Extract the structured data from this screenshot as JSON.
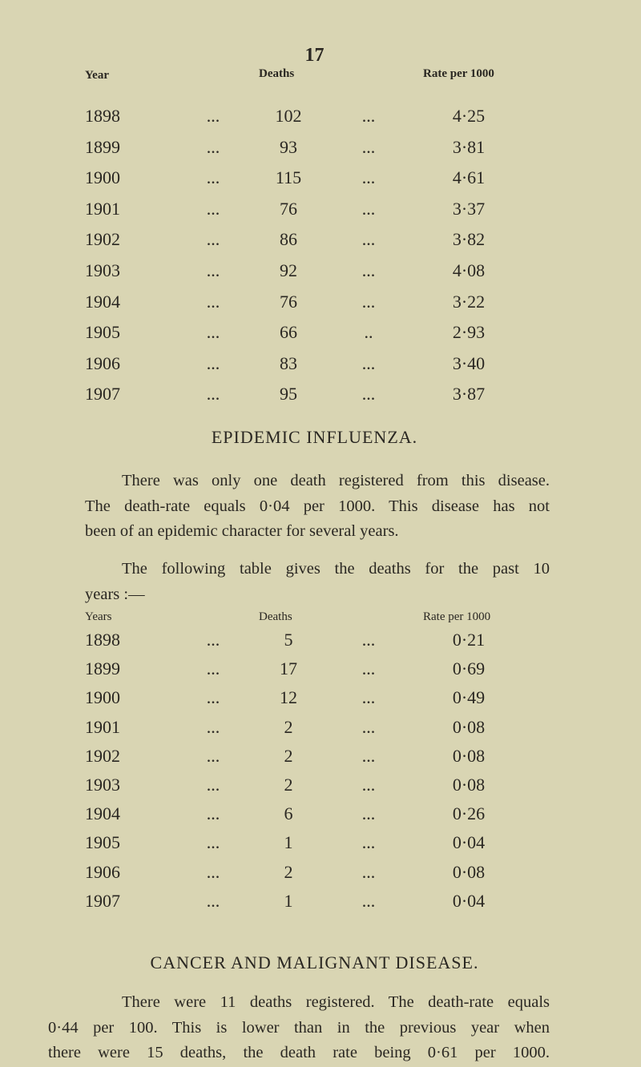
{
  "page_number": "17",
  "table1": {
    "headers": {
      "year": "Year",
      "deaths": "Deaths",
      "rate": "Rate per 1000"
    },
    "rows": [
      {
        "year": "1898",
        "sep1": "...",
        "deaths": "102",
        "sep2": "...",
        "rate": "4·25"
      },
      {
        "year": "1899",
        "sep1": "...",
        "deaths": "93",
        "sep2": "...",
        "rate": "3·81"
      },
      {
        "year": "1900",
        "sep1": "...",
        "deaths": "115",
        "sep2": "...",
        "rate": "4·61"
      },
      {
        "year": "1901",
        "sep1": "...",
        "deaths": "76",
        "sep2": "...",
        "rate": "3·37"
      },
      {
        "year": "1902",
        "sep1": "...",
        "deaths": "86",
        "sep2": "...",
        "rate": "3·82"
      },
      {
        "year": "1903",
        "sep1": "...",
        "deaths": "92",
        "sep2": "...",
        "rate": "4·08"
      },
      {
        "year": "1904",
        "sep1": "...",
        "deaths": "76",
        "sep2": "...",
        "rate": "3·22"
      },
      {
        "year": "1905",
        "sep1": "...",
        "deaths": "66",
        "sep2": "..",
        "rate": "2·93"
      },
      {
        "year": "1906",
        "sep1": "...",
        "deaths": "83",
        "sep2": "...",
        "rate": "3·40"
      },
      {
        "year": "1907",
        "sep1": "...",
        "deaths": "95",
        "sep2": "...",
        "rate": "3·87"
      }
    ]
  },
  "influenza": {
    "heading": "EPIDEMIC INFLUENZA.",
    "paragraph1": [
      "There was only one death registered from this disease.",
      "The death-rate equals 0·04 per 1000. This disease has not",
      "been of an epidemic character for several years."
    ],
    "paragraph2": [
      "The following table gives the deaths for the past 10",
      "years :—"
    ]
  },
  "table2": {
    "headers": {
      "year": "Years",
      "deaths": "Deaths",
      "rate": "Rate per 1000"
    },
    "rows": [
      {
        "year": "1898",
        "sep1": "...",
        "deaths": "5",
        "sep2": "...",
        "rate": "0·21"
      },
      {
        "year": "1899",
        "sep1": "...",
        "deaths": "17",
        "sep2": "...",
        "rate": "0·69"
      },
      {
        "year": "1900",
        "sep1": "...",
        "deaths": "12",
        "sep2": "...",
        "rate": "0·49"
      },
      {
        "year": "1901",
        "sep1": "...",
        "deaths": "2",
        "sep2": "...",
        "rate": "0·08"
      },
      {
        "year": "1902",
        "sep1": "...",
        "deaths": "2",
        "sep2": "...",
        "rate": "0·08"
      },
      {
        "year": "1903",
        "sep1": "...",
        "deaths": "2",
        "sep2": "...",
        "rate": "0·08"
      },
      {
        "year": "1904",
        "sep1": "...",
        "deaths": "6",
        "sep2": "...",
        "rate": "0·26"
      },
      {
        "year": "1905",
        "sep1": "...",
        "deaths": "1",
        "sep2": "...",
        "rate": "0·04"
      },
      {
        "year": "1906",
        "sep1": "...",
        "deaths": "2",
        "sep2": "...",
        "rate": "0·08"
      },
      {
        "year": "1907",
        "sep1": "...",
        "deaths": "1",
        "sep2": "...",
        "rate": "0·04"
      }
    ]
  },
  "cancer": {
    "heading": "CANCER AND MALIGNANT DISEASE.",
    "paragraph": [
      "There were 11 deaths registered. The death-rate equals",
      "0·44 per 100. This is lower than in the previous year when",
      "there were 15 deaths, the death rate being 0·61 per 1000."
    ]
  }
}
